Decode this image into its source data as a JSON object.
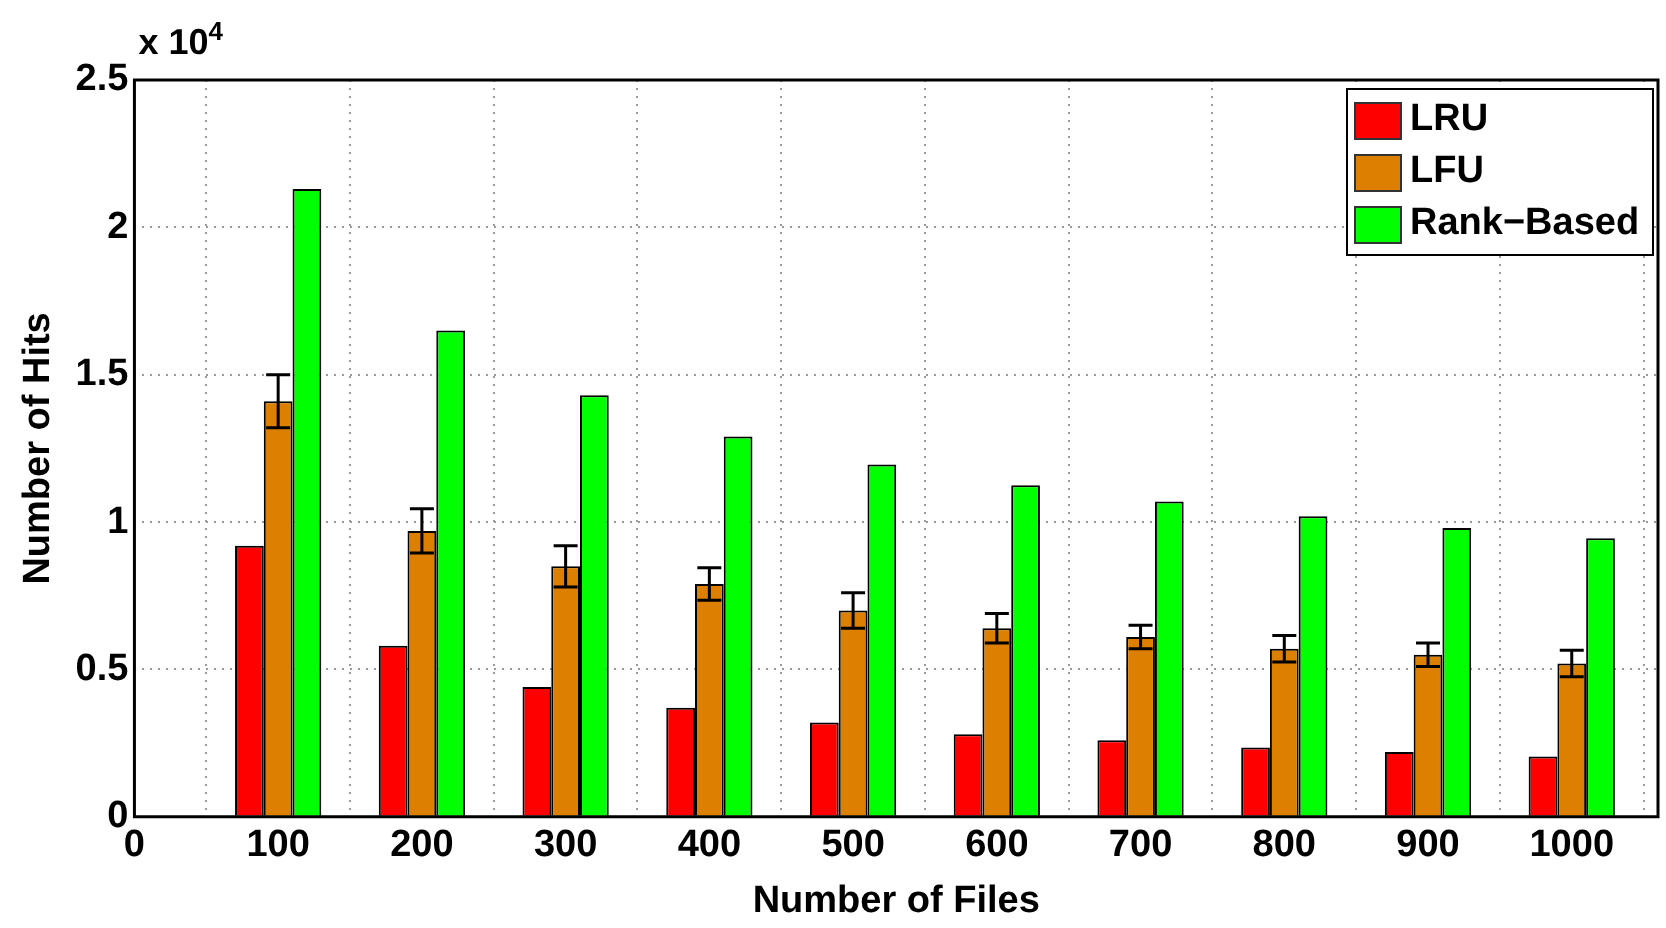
{
  "chart_data": {
    "type": "bar",
    "xlabel": "Number of Files",
    "ylabel": "Number of Hits",
    "annotations": [
      "x 10$^{4}$"
    ],
    "x": [
      100,
      200,
      300,
      400,
      500,
      600,
      700,
      800,
      900,
      1000
    ],
    "xlim": [
      0,
      1060
    ],
    "xticks": [
      0,
      100,
      200,
      300,
      400,
      500,
      600,
      700,
      800,
      900,
      1000
    ],
    "ylim": [
      0,
      2.5
    ],
    "yticks": [
      0,
      0.5,
      1,
      1.5,
      2,
      2.5
    ],
    "grid": true,
    "legend": "top right",
    "series": [
      {
        "name": "LRU",
        "color": "#ff0000",
        "values": [
          0.92,
          0.58,
          0.44,
          0.37,
          0.32,
          0.28,
          0.26,
          0.235,
          0.22,
          0.205
        ]
      },
      {
        "name": "LFU",
        "color": "#dd7f00",
        "values": [
          1.41,
          0.97,
          0.85,
          0.79,
          0.7,
          0.64,
          0.61,
          0.57,
          0.55,
          0.52
        ],
        "errors": [
          0.09,
          0.075,
          0.07,
          0.055,
          0.06,
          0.05,
          0.04,
          0.045,
          0.04,
          0.045
        ]
      },
      {
        "name": "Rank−Based",
        "color": "#00ff00",
        "values": [
          2.13,
          1.65,
          1.43,
          1.29,
          1.195,
          1.125,
          1.07,
          1.02,
          0.98,
          0.945
        ]
      }
    ]
  }
}
